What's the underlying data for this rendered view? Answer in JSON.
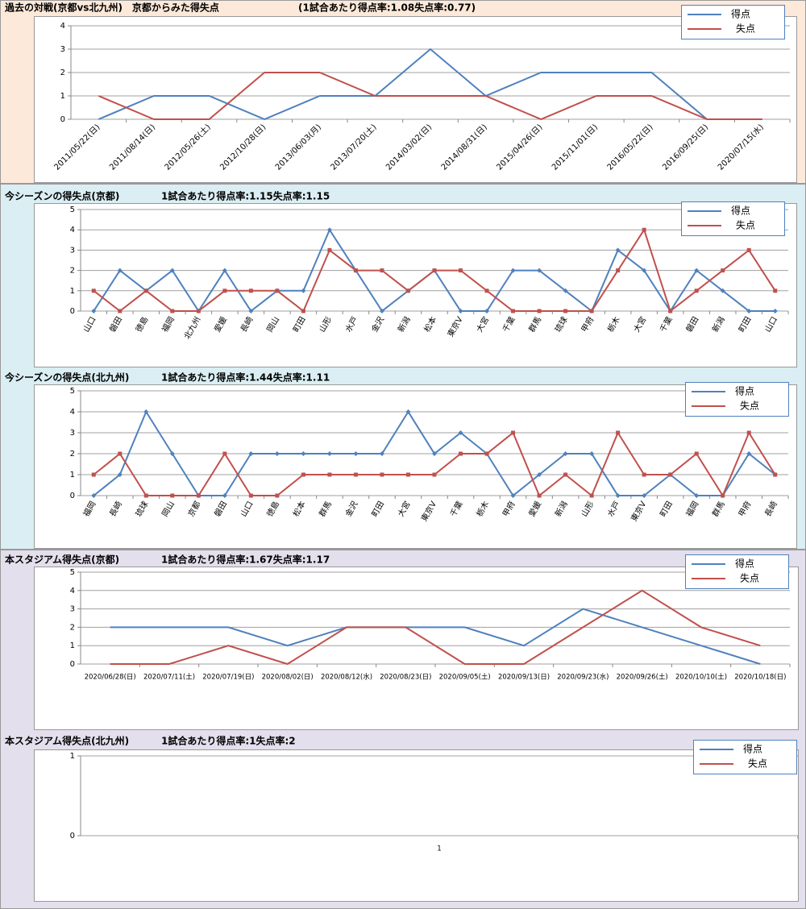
{
  "chart_data": [
    {
      "type": "line",
      "title": "過去の対戦(京都vs北九州)　京都からみた得失点",
      "subtitle": "(1試合あたり得点率:1.08失点率:0.77)",
      "categories": [
        "2011/05/22(日)",
        "2011/08/14(日)",
        "2012/05/26(土)",
        "2012/10/28(日)",
        "2013/06/03(月)",
        "2013/07/20(土)",
        "2014/03/02(日)",
        "2014/08/31(日)",
        "2015/04/26(日)",
        "2015/11/01(日)",
        "2016/05/22(日)",
        "2016/09/25(日)",
        "2020/07/15(水)"
      ],
      "series": [
        {
          "name": "得点",
          "color": "#4f81bd",
          "values": [
            0,
            1,
            1,
            0,
            1,
            1,
            3,
            1,
            2,
            2,
            2,
            0,
            0
          ]
        },
        {
          "name": "失点",
          "color": "#c0504d",
          "values": [
            1,
            0,
            0,
            2,
            2,
            1,
            1,
            1,
            0,
            1,
            1,
            0,
            0
          ]
        }
      ],
      "ylim": [
        0,
        4
      ],
      "yticks": [
        0,
        1,
        2,
        3,
        4
      ],
      "grid": true,
      "markers": false
    },
    {
      "type": "line",
      "title": "今シーズンの得失点(京都)",
      "subtitle": "1試合あたり得点率:1.15失点率:1.15",
      "categories": [
        "山口",
        "磐田",
        "徳島",
        "福岡",
        "北九州",
        "愛媛",
        "長崎",
        "岡山",
        "町田",
        "山形",
        "水戸",
        "金沢",
        "新潟",
        "松本",
        "東京V",
        "大宮",
        "千葉",
        "群馬",
        "琉球",
        "甲府",
        "栃木",
        "大宮",
        "千葉",
        "磐田",
        "新潟",
        "町田",
        "山口"
      ],
      "series": [
        {
          "name": "得点",
          "color": "#4f81bd",
          "values": [
            0,
            2,
            1,
            2,
            0,
            2,
            0,
            1,
            1,
            4,
            2,
            0,
            1,
            2,
            0,
            0,
            2,
            2,
            1,
            0,
            3,
            2,
            0,
            2,
            1,
            0,
            0
          ]
        },
        {
          "name": "失点",
          "color": "#c0504d",
          "values": [
            1,
            0,
            1,
            0,
            0,
            1,
            1,
            1,
            0,
            3,
            2,
            2,
            1,
            2,
            2,
            1,
            0,
            0,
            0,
            0,
            2,
            4,
            0,
            1,
            2,
            3,
            1
          ]
        }
      ],
      "ylim": [
        0,
        5
      ],
      "yticks": [
        0,
        1,
        2,
        3,
        4,
        5
      ],
      "grid": true,
      "markers": true
    },
    {
      "type": "line",
      "title": "今シーズンの得失点(北九州)",
      "subtitle": "1試合あたり得点率:1.44失点率:1.11",
      "categories": [
        "福岡",
        "長崎",
        "琉球",
        "岡山",
        "京都",
        "磐田",
        "山口",
        "徳島",
        "松本",
        "群馬",
        "金沢",
        "町田",
        "大宮",
        "東京V",
        "千葉",
        "栃木",
        "甲府",
        "愛媛",
        "新潟",
        "山形",
        "水戸",
        "東京V",
        "町田",
        "福岡",
        "群馬",
        "甲府",
        "長崎"
      ],
      "series": [
        {
          "name": "得点",
          "color": "#4f81bd",
          "values": [
            0,
            1,
            4,
            2,
            0,
            0,
            2,
            2,
            2,
            2,
            2,
            2,
            4,
            2,
            3,
            2,
            0,
            1,
            2,
            2,
            0,
            0,
            1,
            0,
            0,
            2,
            1
          ]
        },
        {
          "name": "失点",
          "color": "#c0504d",
          "values": [
            1,
            2,
            0,
            0,
            0,
            2,
            0,
            0,
            1,
            1,
            1,
            1,
            1,
            1,
            2,
            2,
            3,
            0,
            1,
            0,
            3,
            1,
            1,
            2,
            0,
            3,
            1
          ]
        }
      ],
      "ylim": [
        0,
        5
      ],
      "yticks": [
        0,
        1,
        2,
        3,
        4,
        5
      ],
      "grid": true,
      "markers": true
    },
    {
      "type": "line",
      "title": "本スタジアム得失点(京都)",
      "subtitle": "1試合あたり得点率:1.67失点率:1.17",
      "categories": [
        "2020/06/28(日)",
        "2020/07/11(土)",
        "2020/07/19(日)",
        "2020/08/02(日)",
        "2020/08/12(水)",
        "2020/08/23(日)",
        "2020/09/05(土)",
        "2020/09/13(日)",
        "2020/09/23(水)",
        "2020/09/26(土)",
        "2020/10/10(土)",
        "2020/10/18(日)"
      ],
      "series": [
        {
          "name": "得点",
          "color": "#4f81bd",
          "values": [
            2,
            2,
            2,
            1,
            2,
            2,
            2,
            1,
            3,
            2,
            1,
            0
          ]
        },
        {
          "name": "失点",
          "color": "#c0504d",
          "values": [
            0,
            0,
            1,
            0,
            2,
            2,
            0,
            0,
            2,
            4,
            2,
            1
          ]
        }
      ],
      "ylim": [
        0,
        5
      ],
      "yticks": [
        0,
        1,
        2,
        3,
        4,
        5
      ],
      "grid": true,
      "markers": false
    },
    {
      "type": "line",
      "title": "本スタジアム得失点(北九州)",
      "subtitle": "1試合あたり得点率:1失点率:2",
      "categories": [
        "1"
      ],
      "series": [
        {
          "name": "得点",
          "color": "#4f81bd",
          "values": [
            null
          ]
        },
        {
          "name": "失点",
          "color": "#c0504d",
          "values": [
            null
          ]
        }
      ],
      "ylim": [
        0,
        1
      ],
      "yticks": [
        0,
        1
      ],
      "grid": true,
      "markers": false
    }
  ]
}
